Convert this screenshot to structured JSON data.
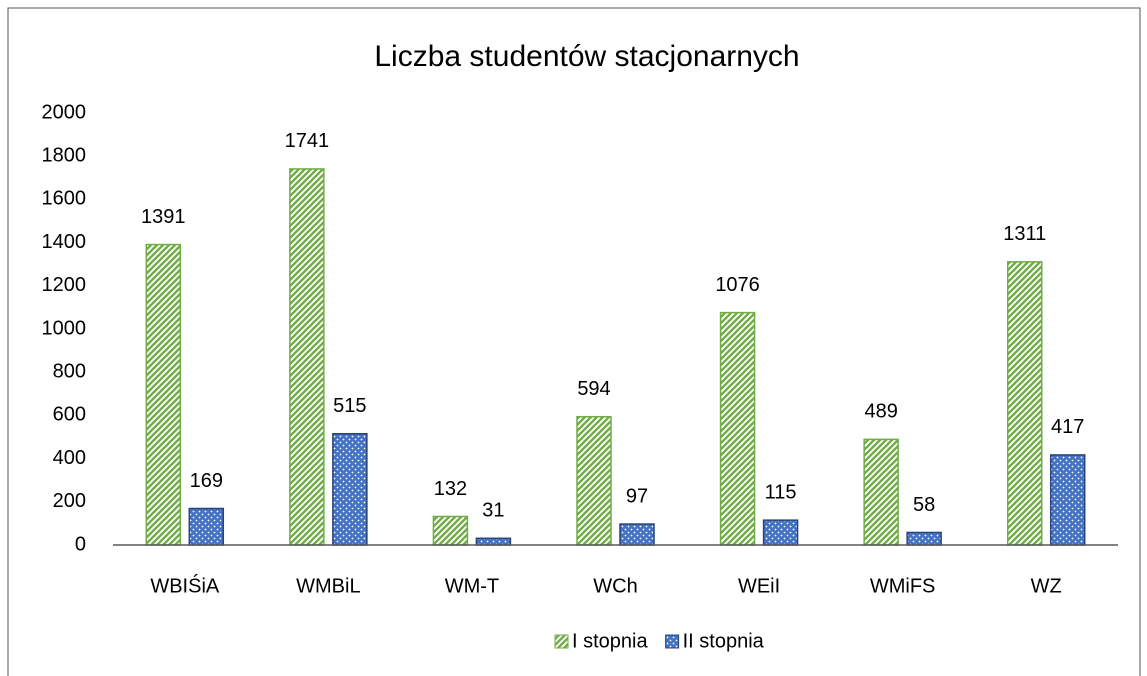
{
  "chart_data": {
    "type": "bar",
    "title": "Liczba studentów stacjonarnych",
    "categories": [
      "WBIŚiA",
      "WMBiL",
      "WM-T",
      "WCh",
      "WEiI",
      "WMiFS",
      "WZ"
    ],
    "series": [
      {
        "name": "I stopnia",
        "color": "#70ad47",
        "pattern": "diagonal",
        "values": [
          1391,
          1741,
          132,
          594,
          1076,
          489,
          1311
        ]
      },
      {
        "name": "II stopnia",
        "color": "#4472c4",
        "pattern": "dots",
        "values": [
          169,
          515,
          31,
          97,
          115,
          58,
          417
        ]
      }
    ],
    "ylim": [
      0,
      2000
    ],
    "yticks": [
      0,
      200,
      400,
      600,
      800,
      1000,
      1200,
      1400,
      1600,
      1800,
      2000
    ],
    "grid": false,
    "legend": "bottom"
  }
}
